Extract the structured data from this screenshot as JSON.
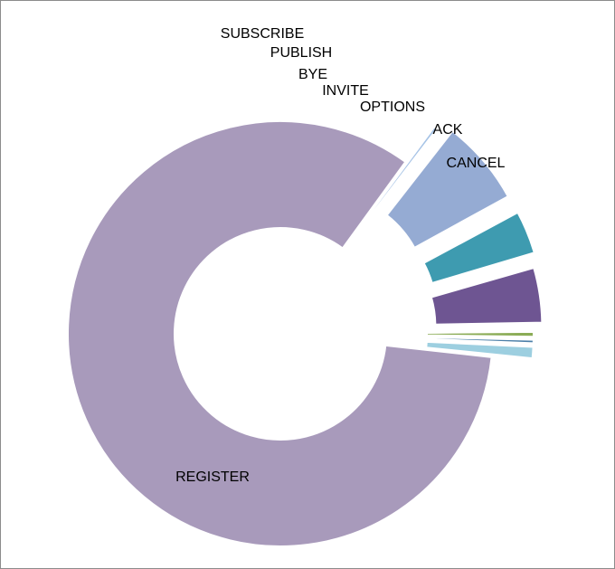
{
  "chart_data": {
    "type": "pie",
    "subtype": "exploded-donut",
    "title": "",
    "legend": "none",
    "categories": [
      "CANCEL",
      "ACK",
      "OPTIONS",
      "INVITE",
      "BYE",
      "PUBLISH",
      "SUBSCRIBE",
      "REGISTER"
    ],
    "values": [
      0.4,
      6.6,
      3.4,
      4.3,
      0.5,
      0.4,
      1.0,
      83.4
    ],
    "colors": [
      "#a6c3e6",
      "#95abd3",
      "#3e9bb0",
      "#6e5592",
      "#8bac56",
      "#4b7fa8",
      "#9dcfe0",
      "#a89abb"
    ],
    "labels": [
      "CANCEL",
      "ACK",
      "OPTIONS",
      "INVITE",
      "BYE",
      "PUBLISH",
      "SUBSCRIBE",
      "REGISTER"
    ]
  }
}
